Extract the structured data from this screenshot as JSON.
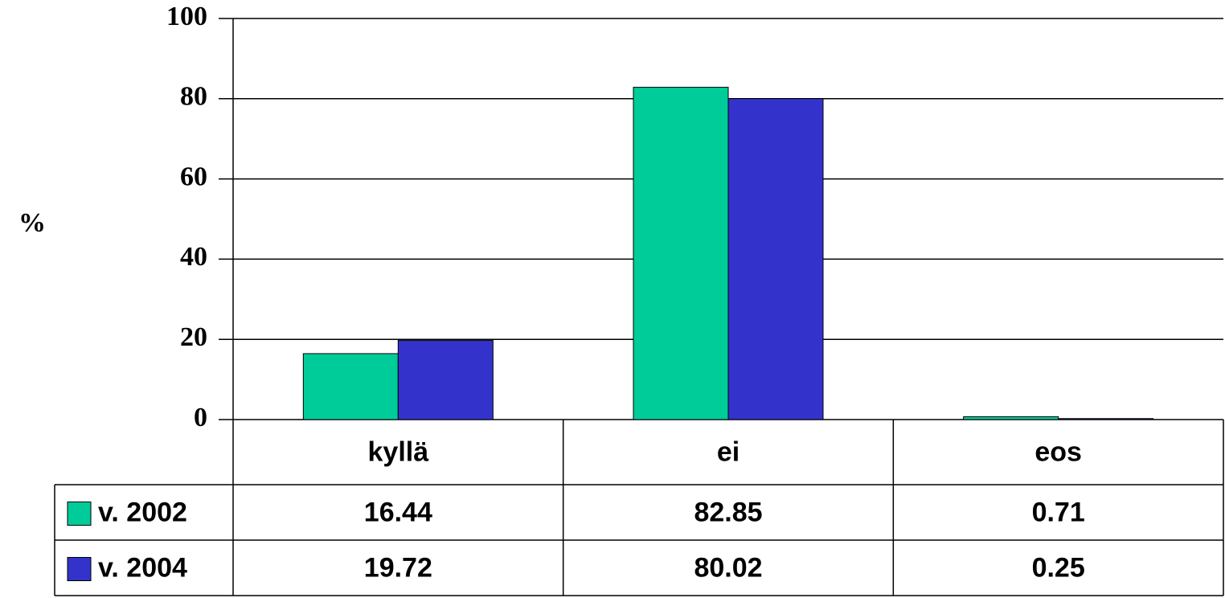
{
  "chart_data": {
    "type": "bar",
    "ylabel": "%",
    "categories": [
      "kyllä",
      "ei",
      "eos"
    ],
    "series": [
      {
        "name": "v. 2002",
        "color": "#00cc99",
        "values": [
          16.44,
          82.85,
          0.71
        ]
      },
      {
        "name": "v. 2004",
        "color": "#3333cc",
        "values": [
          19.72,
          80.02,
          0.25
        ]
      }
    ],
    "ylim": [
      0,
      100
    ],
    "yticks": [
      0,
      20,
      40,
      60,
      80,
      100
    ],
    "grid": true,
    "data_table": true
  }
}
